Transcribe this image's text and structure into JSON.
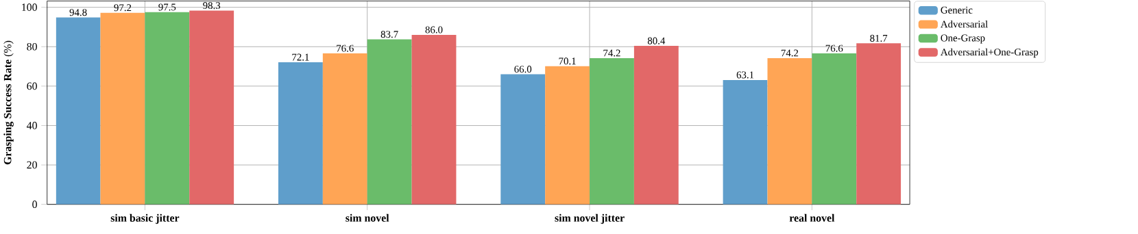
{
  "chart_data": {
    "type": "bar",
    "ylabel": "**Grasping Success Rate** (%)",
    "categories": [
      "sim basic jitter",
      "sim novel",
      "sim novel jitter",
      "real novel"
    ],
    "series": [
      {
        "name": "Generic",
        "color": "#5f9ecb",
        "values": [
          94.8,
          72.1,
          66.0,
          63.1
        ],
        "value_labels": [
          "94.8",
          "72.1",
          "66.0",
          "63.1"
        ]
      },
      {
        "name": "Adversarial",
        "color": "#ffa555",
        "values": [
          97.2,
          76.6,
          70.1,
          74.2
        ],
        "value_labels": [
          "97.2",
          "76.6",
          "70.1",
          "74.2"
        ]
      },
      {
        "name": "One-Grasp",
        "color": "#6abc6a",
        "values": [
          97.5,
          83.7,
          74.2,
          76.6
        ],
        "value_labels": [
          "97.5",
          "83.7",
          "74.2",
          "76.6"
        ]
      },
      {
        "name": "Adversarial+One-Grasp",
        "color": "#e26868",
        "values": [
          98.3,
          86.0,
          80.4,
          81.7
        ],
        "value_labels": [
          "98.3",
          "86.0",
          "80.4",
          "81.7"
        ]
      }
    ],
    "ylim": [
      0,
      103.2
    ],
    "yticks": [
      0,
      20,
      40,
      60,
      80,
      100
    ],
    "grid": true,
    "legend": "top right"
  }
}
